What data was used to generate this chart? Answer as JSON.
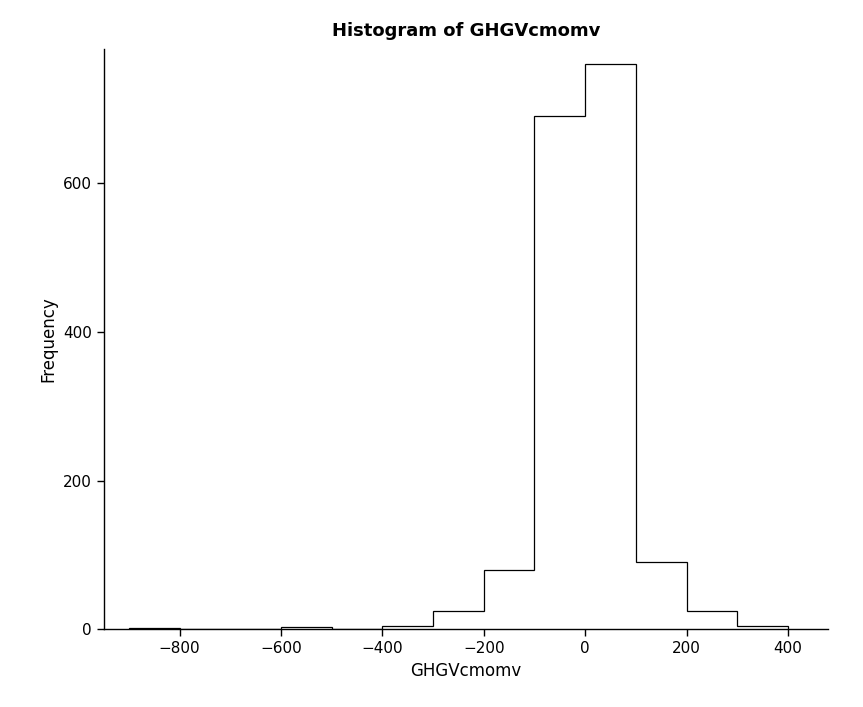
{
  "title": "Histogram of GHGVcmomv",
  "xlabel": "GHGVcmomv",
  "ylabel": "Frequency",
  "bar_edges": [
    -900,
    -800,
    -700,
    -600,
    -500,
    -400,
    -300,
    -200,
    -100,
    0,
    100,
    200,
    300,
    400
  ],
  "bar_heights": [
    2,
    0,
    0,
    3,
    0,
    5,
    25,
    80,
    690,
    760,
    90,
    25,
    5
  ],
  "xlim": [
    -950,
    480
  ],
  "ylim": [
    0,
    780
  ],
  "yticks": [
    0,
    200,
    400,
    600
  ],
  "xticks": [
    -800,
    -600,
    -400,
    -200,
    0,
    200,
    400
  ],
  "bar_color": "#ffffff",
  "bar_edgecolor": "#000000",
  "title_fontsize": 13,
  "axis_label_fontsize": 12,
  "tick_fontsize": 11,
  "background_color": "#ffffff"
}
